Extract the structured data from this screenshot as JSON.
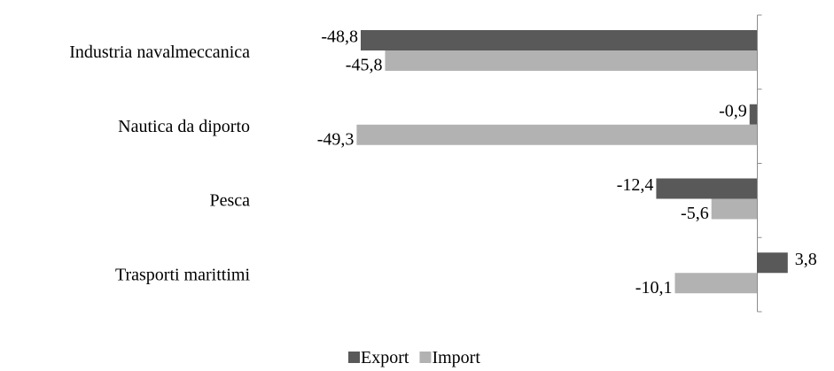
{
  "chart_data": {
    "type": "bar",
    "orientation": "horizontal",
    "categories": [
      "Industria navalmeccanica",
      "Nautica da diporto",
      "Pesca",
      "Trasporti marittimi"
    ],
    "series": [
      {
        "name": "Export",
        "color": "#595959",
        "values": [
          -48.8,
          -0.9,
          -12.4,
          3.8
        ]
      },
      {
        "name": "Import",
        "color": "#b2b2b2",
        "values": [
          -45.8,
          -49.3,
          -5.6,
          -10.1
        ]
      }
    ],
    "data_labels": {
      "Export": [
        "-48,8",
        "-0,9",
        "-12,4",
        "3,8"
      ],
      "Import": [
        "-45,8",
        "-49,3",
        "-5,6",
        "-10,1"
      ]
    },
    "title": "",
    "xlabel": "",
    "ylabel": "",
    "grid": false,
    "legend_position": "bottom"
  }
}
